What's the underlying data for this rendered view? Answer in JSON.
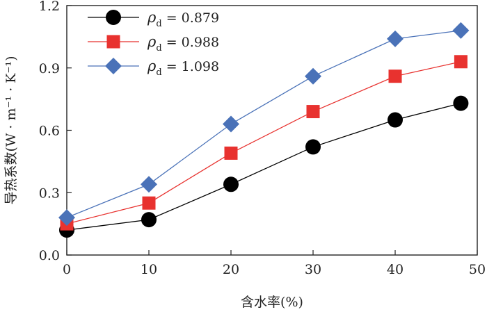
{
  "chart_data": {
    "type": "line",
    "title": "",
    "xlabel": "含水率(%)",
    "ylabel": "导热系数(W · m⁻¹ · K⁻¹)",
    "xlim": [
      0,
      50
    ],
    "ylim": [
      0.0,
      1.2
    ],
    "xticks": [
      "0",
      "10",
      "20",
      "30",
      "40",
      "50"
    ],
    "yticks": [
      "0.0",
      "0.3",
      "0.6",
      "0.9",
      "1.2"
    ],
    "grid": false,
    "legend_position": "top-left",
    "x": [
      0,
      10,
      20,
      30,
      40,
      48
    ],
    "series": [
      {
        "name": "ρd = 0.879",
        "legend_symbol": "ρ",
        "legend_subscript": "d",
        "legend_value": " = 0.879",
        "marker": "circle",
        "color": "#000000",
        "line_color": "#000000",
        "values": [
          0.12,
          0.17,
          0.34,
          0.52,
          0.65,
          0.73
        ]
      },
      {
        "name": "ρd = 0.988",
        "legend_symbol": "ρ",
        "legend_subscript": "d",
        "legend_value": " = 0.988",
        "marker": "square",
        "color": "#e8322f",
        "line_color": "#e8322f",
        "values": [
          0.15,
          0.25,
          0.49,
          0.69,
          0.86,
          0.93
        ]
      },
      {
        "name": "ρd = 1.098",
        "legend_symbol": "ρ",
        "legend_subscript": "d",
        "legend_value": " = 1.098",
        "marker": "diamond",
        "color": "#4a72b8",
        "line_color": "#4a72b8",
        "values": [
          0.18,
          0.34,
          0.63,
          0.86,
          1.04,
          1.08
        ]
      }
    ]
  }
}
